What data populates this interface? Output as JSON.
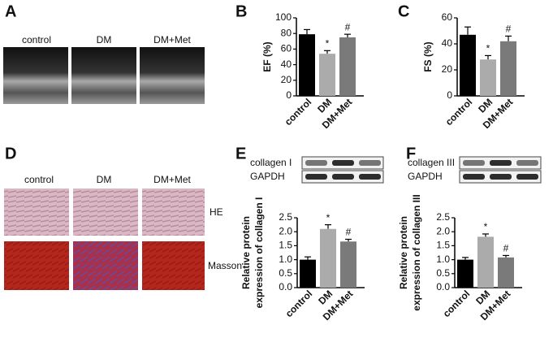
{
  "figure_panels": {
    "A": {
      "letter": "A",
      "labels": [
        "control",
        "DM",
        "DM+Met"
      ]
    },
    "D": {
      "letter": "D",
      "labels": [
        "control",
        "DM",
        "DM+Met"
      ],
      "rows": [
        "HE",
        "Masson"
      ]
    }
  },
  "chart_data": [
    {
      "type": "bar",
      "letter": "B",
      "ylabel": [
        "EF (%)"
      ],
      "categories": [
        "control",
        "DM",
        "DM+Met"
      ],
      "values": [
        79,
        54,
        75
      ],
      "errors": [
        6,
        4,
        4
      ],
      "significance": [
        null,
        "*",
        "#"
      ],
      "colors": [
        "#000000",
        "#ababab",
        "#7a7a7a"
      ],
      "ylim": [
        0,
        100
      ],
      "yticks": [
        0,
        20,
        40,
        60,
        80,
        100
      ]
    },
    {
      "type": "bar",
      "letter": "C",
      "ylabel": [
        "FS (%)"
      ],
      "categories": [
        "control",
        "DM",
        "DM+Met"
      ],
      "values": [
        47,
        28,
        42
      ],
      "errors": [
        6,
        3,
        4
      ],
      "significance": [
        null,
        "*",
        "#"
      ],
      "colors": [
        "#000000",
        "#ababab",
        "#7a7a7a"
      ],
      "ylim": [
        0,
        60
      ],
      "yticks": [
        0,
        20,
        40,
        60
      ]
    },
    {
      "type": "bar",
      "letter": "E",
      "ylabel": [
        "Relative protein",
        "expression of collagen I"
      ],
      "blot_labels": [
        "collagen I",
        "GAPDH"
      ],
      "categories": [
        "control",
        "DM",
        "DM+Met"
      ],
      "values": [
        1.0,
        2.1,
        1.65
      ],
      "errors": [
        0.1,
        0.15,
        0.08
      ],
      "significance": [
        null,
        "*",
        "#"
      ],
      "colors": [
        "#000000",
        "#ababab",
        "#7a7a7a"
      ],
      "ylim": [
        0,
        2.5
      ],
      "yticks": [
        {
          "value": 0,
          "label": "0.0"
        },
        0.5,
        {
          "value": 1,
          "label": "1.0"
        },
        1.5,
        {
          "value": 2,
          "label": "2.0"
        },
        2.5
      ]
    },
    {
      "type": "bar",
      "letter": "F",
      "ylabel": [
        "Relative protein",
        "expression of collagen III"
      ],
      "blot_labels": [
        "collagen III",
        "GAPDH"
      ],
      "categories": [
        "control",
        "DM",
        "DM+Met"
      ],
      "values": [
        1.0,
        1.82,
        1.08
      ],
      "errors": [
        0.08,
        0.1,
        0.07
      ],
      "significance": [
        null,
        "*",
        "#"
      ],
      "colors": [
        "#000000",
        "#ababab",
        "#7a7a7a"
      ],
      "ylim": [
        0,
        2.5
      ],
      "yticks": [
        {
          "value": 0,
          "label": "0.0"
        },
        0.5,
        {
          "value": 1,
          "label": "1.0"
        },
        1.5,
        {
          "value": 2,
          "label": "2.0"
        },
        2.5
      ]
    }
  ]
}
